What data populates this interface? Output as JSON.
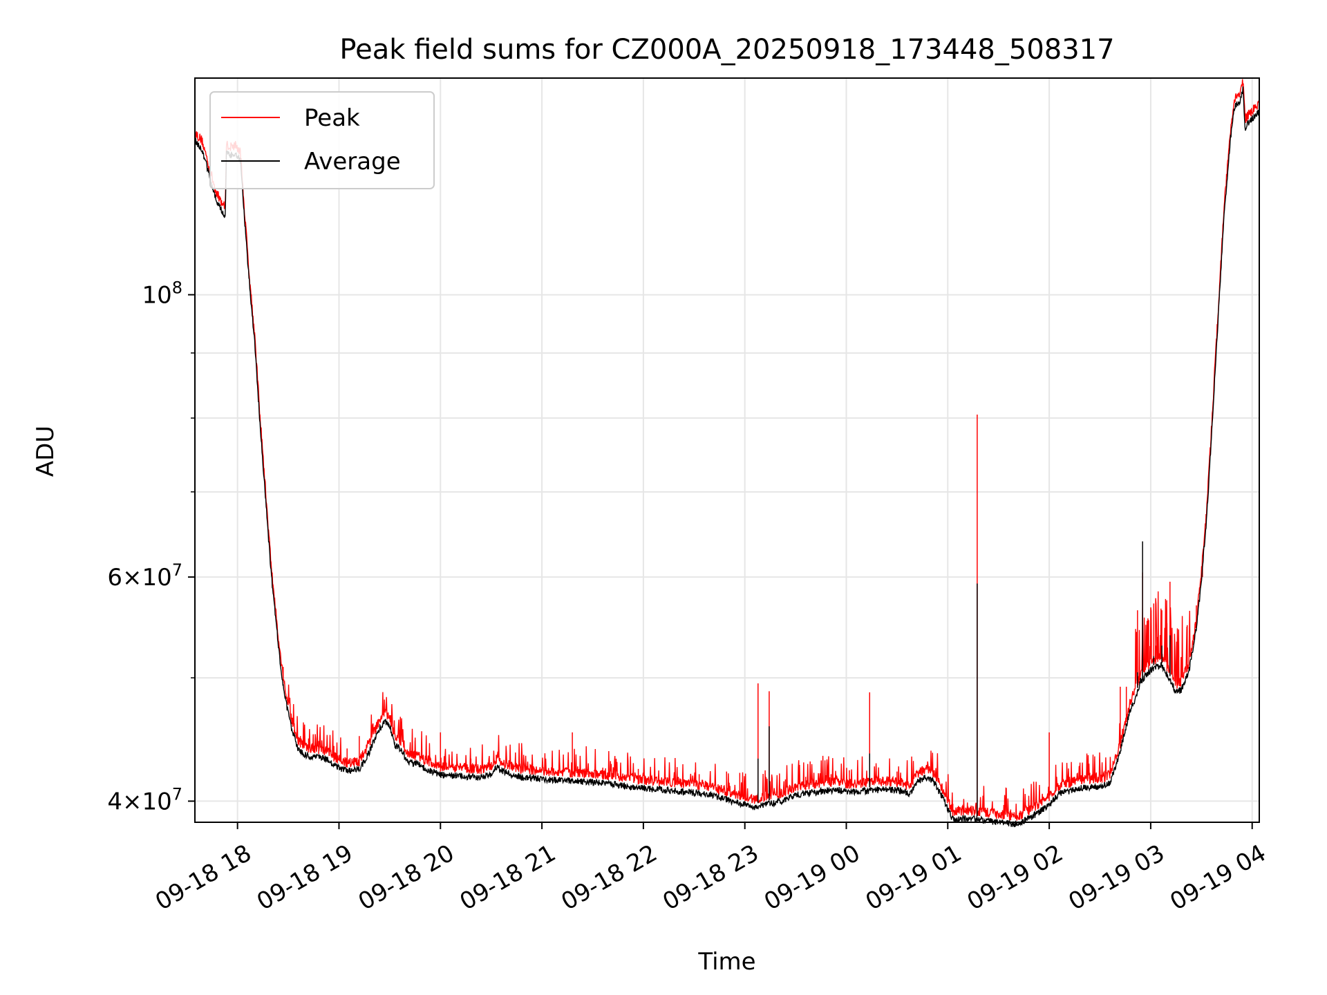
{
  "chart_data": {
    "type": "line",
    "title": "Peak field sums for CZ000A_20250918_173448_508317",
    "xlabel": "Time",
    "ylabel": "ADU",
    "yscale": "log",
    "x_unit": "hours since 09-18 00:00",
    "xlim": [
      17.58,
      28.07
    ],
    "ylim": [
      38500000,
      148000000
    ],
    "grid": true,
    "legend_position": "upper left",
    "x_ticks": [
      {
        "value": 18,
        "label": "09-18 18"
      },
      {
        "value": 19,
        "label": "09-18 19"
      },
      {
        "value": 20,
        "label": "09-18 20"
      },
      {
        "value": 21,
        "label": "09-18 21"
      },
      {
        "value": 22,
        "label": "09-18 22"
      },
      {
        "value": 23,
        "label": "09-18 23"
      },
      {
        "value": 24,
        "label": "09-19 00"
      },
      {
        "value": 25,
        "label": "09-19 01"
      },
      {
        "value": 26,
        "label": "09-19 02"
      },
      {
        "value": 27,
        "label": "09-19 03"
      },
      {
        "value": 28,
        "label": "09-19 04"
      }
    ],
    "y_major_ticks": [
      {
        "value": 40000000,
        "mant": "4",
        "exp": "7"
      },
      {
        "value": 60000000,
        "mant": "6",
        "exp": "7"
      },
      {
        "value": 100000000,
        "mant": "",
        "exp": "8"
      }
    ],
    "y_minor_ticks": [
      50000000,
      70000000,
      80000000,
      90000000
    ],
    "series": [
      {
        "name": "Peak",
        "color": "#ff0000"
      },
      {
        "name": "Average",
        "color": "#000000"
      }
    ],
    "average_curve": [
      [
        17.58,
        133000000
      ],
      [
        17.65,
        131000000
      ],
      [
        17.72,
        125000000
      ],
      [
        17.78,
        120000000
      ],
      [
        17.82,
        118000000
      ],
      [
        17.88,
        116000000
      ],
      [
        17.89,
        130000000
      ],
      [
        17.93,
        129500000
      ],
      [
        17.98,
        130000000
      ],
      [
        18.03,
        128000000
      ],
      [
        18.07,
        115000000
      ],
      [
        18.12,
        102000000
      ],
      [
        18.17,
        92000000
      ],
      [
        18.22,
        80000000
      ],
      [
        18.28,
        69000000
      ],
      [
        18.33,
        61000000
      ],
      [
        18.38,
        55500000
      ],
      [
        18.43,
        51000000
      ],
      [
        18.48,
        48000000
      ],
      [
        18.53,
        46000000
      ],
      [
        18.6,
        44200000
      ],
      [
        18.68,
        43700000
      ],
      [
        18.78,
        43600000
      ],
      [
        18.88,
        43400000
      ],
      [
        18.98,
        42800000
      ],
      [
        19.08,
        42500000
      ],
      [
        19.2,
        42600000
      ],
      [
        19.3,
        44000000
      ],
      [
        19.38,
        45600000
      ],
      [
        19.45,
        46500000
      ],
      [
        19.5,
        46200000
      ],
      [
        19.55,
        44500000
      ],
      [
        19.6,
        44300000
      ],
      [
        19.68,
        43200000
      ],
      [
        19.78,
        43000000
      ],
      [
        19.9,
        42500000
      ],
      [
        20.0,
        42200000
      ],
      [
        20.2,
        42100000
      ],
      [
        20.4,
        42000000
      ],
      [
        20.5,
        42200000
      ],
      [
        20.55,
        42800000
      ],
      [
        20.6,
        42500000
      ],
      [
        20.8,
        42000000
      ],
      [
        21.0,
        41900000
      ],
      [
        21.2,
        41800000
      ],
      [
        21.4,
        41700000
      ],
      [
        21.6,
        41600000
      ],
      [
        21.8,
        41400000
      ],
      [
        22.0,
        41200000
      ],
      [
        22.3,
        41000000
      ],
      [
        22.6,
        40800000
      ],
      [
        22.8,
        40400000
      ],
      [
        23.0,
        40000000
      ],
      [
        23.1,
        39800000
      ],
      [
        23.2,
        40000000
      ],
      [
        23.35,
        40200000
      ],
      [
        23.5,
        40700000
      ],
      [
        23.7,
        40900000
      ],
      [
        23.9,
        41100000
      ],
      [
        24.0,
        40900000
      ],
      [
        24.2,
        41000000
      ],
      [
        24.4,
        41100000
      ],
      [
        24.55,
        41000000
      ],
      [
        24.62,
        40700000
      ],
      [
        24.7,
        41700000
      ],
      [
        24.78,
        42000000
      ],
      [
        24.85,
        41800000
      ],
      [
        24.95,
        40500000
      ],
      [
        25.05,
        38900000
      ],
      [
        25.2,
        39000000
      ],
      [
        25.35,
        38900000
      ],
      [
        25.5,
        38700000
      ],
      [
        25.7,
        38600000
      ],
      [
        25.85,
        39200000
      ],
      [
        26.0,
        40000000
      ],
      [
        26.1,
        40800000
      ],
      [
        26.3,
        41200000
      ],
      [
        26.5,
        41300000
      ],
      [
        26.6,
        41600000
      ],
      [
        26.7,
        44000000
      ],
      [
        26.75,
        45800000
      ],
      [
        26.8,
        47500000
      ],
      [
        26.85,
        48500000
      ],
      [
        26.9,
        50000000
      ],
      [
        27.0,
        51000000
      ],
      [
        27.1,
        51500000
      ],
      [
        27.2,
        50000000
      ],
      [
        27.25,
        49000000
      ],
      [
        27.3,
        49200000
      ],
      [
        27.38,
        51000000
      ],
      [
        27.45,
        55000000
      ],
      [
        27.5,
        60000000
      ],
      [
        27.55,
        67000000
      ],
      [
        27.6,
        78000000
      ],
      [
        27.66,
        95000000
      ],
      [
        27.72,
        115000000
      ],
      [
        27.78,
        132000000
      ],
      [
        27.82,
        141000000
      ],
      [
        27.88,
        143000000
      ],
      [
        27.91,
        146000000
      ],
      [
        27.93,
        136000000
      ],
      [
        27.97,
        137500000
      ],
      [
        28.02,
        139000000
      ],
      [
        28.07,
        140000000
      ]
    ],
    "peak_spikes": [
      [
        18.45,
        51000000
      ],
      [
        18.56,
        45500000
      ],
      [
        18.62,
        45000000
      ],
      [
        18.7,
        44800000
      ],
      [
        18.8,
        44600000
      ],
      [
        18.95,
        44200000
      ],
      [
        19.08,
        44000000
      ],
      [
        19.2,
        45000000
      ],
      [
        19.6,
        45500000
      ],
      [
        19.75,
        44600000
      ],
      [
        20.0,
        45300000
      ],
      [
        20.3,
        43200000
      ],
      [
        20.55,
        43500000
      ],
      [
        20.9,
        42800000
      ],
      [
        21.3,
        45300000
      ],
      [
        21.6,
        42500000
      ],
      [
        21.95,
        42400000
      ],
      [
        22.55,
        42000000
      ],
      [
        22.82,
        42200000
      ],
      [
        22.95,
        42100000
      ],
      [
        23.13,
        49500000
      ],
      [
        23.24,
        48800000
      ],
      [
        23.4,
        41600000
      ],
      [
        23.6,
        41800000
      ],
      [
        23.85,
        42000000
      ],
      [
        24.03,
        42300000
      ],
      [
        24.23,
        48700000
      ],
      [
        24.5,
        42200000
      ],
      [
        24.75,
        42300000
      ],
      [
        25.05,
        39800000
      ],
      [
        25.2,
        39600000
      ],
      [
        25.29,
        80500000
      ],
      [
        25.62,
        39400000
      ],
      [
        25.8,
        39500000
      ],
      [
        26.0,
        45300000
      ],
      [
        26.2,
        41800000
      ],
      [
        26.4,
        42100000
      ],
      [
        26.52,
        42200000
      ],
      [
        26.7,
        49200000
      ],
      [
        26.76,
        49200000
      ],
      [
        26.87,
        56500000
      ],
      [
        26.92,
        60500000
      ],
      [
        26.98,
        55500000
      ],
      [
        27.03,
        57200000
      ],
      [
        27.05,
        53000000
      ],
      [
        27.11,
        56500000
      ],
      [
        27.16,
        55200000
      ],
      [
        27.19,
        59500000
      ],
      [
        27.26,
        50500000
      ],
      [
        27.36,
        55000000
      ],
      [
        27.45,
        57000000
      ],
      [
        27.51,
        60000000
      ]
    ],
    "average_spikes": [
      [
        23.13,
        43200000
      ],
      [
        23.24,
        45800000
      ],
      [
        24.23,
        43600000
      ],
      [
        25.29,
        59300000
      ],
      [
        26.87,
        50500000
      ],
      [
        26.92,
        64000000
      ],
      [
        27.03,
        52000000
      ],
      [
        27.11,
        53000000
      ],
      [
        27.19,
        54000000
      ]
    ]
  }
}
